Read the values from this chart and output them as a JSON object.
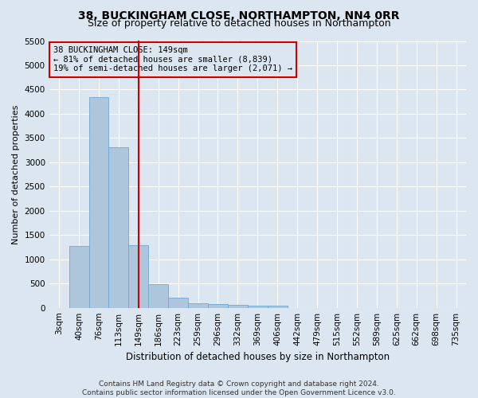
{
  "title": "38, BUCKINGHAM CLOSE, NORTHAMPTON, NN4 0RR",
  "subtitle": "Size of property relative to detached houses in Northampton",
  "xlabel": "Distribution of detached houses by size in Northampton",
  "ylabel": "Number of detached properties",
  "footer_line1": "Contains HM Land Registry data © Crown copyright and database right 2024.",
  "footer_line2": "Contains public sector information licensed under the Open Government Licence v3.0.",
  "bar_labels": [
    "3sqm",
    "40sqm",
    "76sqm",
    "113sqm",
    "149sqm",
    "186sqm",
    "223sqm",
    "259sqm",
    "296sqm",
    "332sqm",
    "369sqm",
    "406sqm",
    "442sqm",
    "479sqm",
    "515sqm",
    "552sqm",
    "589sqm",
    "625sqm",
    "662sqm",
    "698sqm",
    "735sqm"
  ],
  "bar_values": [
    0,
    1270,
    4350,
    3310,
    1290,
    480,
    200,
    95,
    70,
    55,
    40,
    50,
    0,
    0,
    0,
    0,
    0,
    0,
    0,
    0,
    0
  ],
  "bar_color": "#aec6dc",
  "bar_edgecolor": "#6fa8d0",
  "vline_color": "#cc0000",
  "ylim": [
    0,
    5500
  ],
  "yticks": [
    0,
    500,
    1000,
    1500,
    2000,
    2500,
    3000,
    3500,
    4000,
    4500,
    5000,
    5500
  ],
  "annotation_line1": "38 BUCKINGHAM CLOSE: 149sqm",
  "annotation_line2": "← 81% of detached houses are smaller (8,839)",
  "annotation_line3": "19% of semi-detached houses are larger (2,071) →",
  "annotation_box_edgecolor": "#cc0000",
  "bg_color": "#dce6f0",
  "grid_color": "#ffffff",
  "title_fontsize": 10,
  "subtitle_fontsize": 9,
  "xlabel_fontsize": 8.5,
  "ylabel_fontsize": 8,
  "tick_fontsize": 7.5,
  "annotation_fontsize": 7.5,
  "footer_fontsize": 6.5
}
